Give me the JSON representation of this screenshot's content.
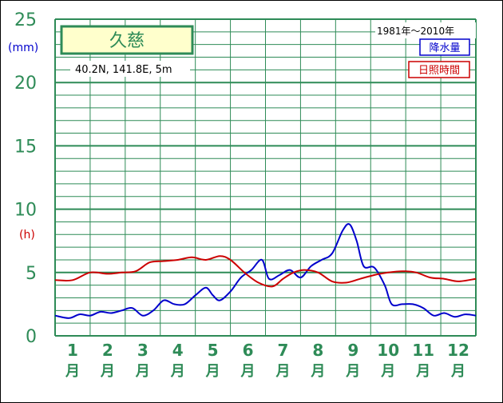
{
  "chart_data": {
    "type": "line",
    "period": "1981年〜2010年",
    "station": "久慈",
    "coords": "40.2N,  141.8E,  5m",
    "y_unit_precip": "(mm)",
    "y_unit_sun": "(h)",
    "yticks": [
      "0",
      "5",
      "10",
      "15",
      "20",
      "25"
    ],
    "ylim": [
      0,
      25
    ],
    "months": [
      "1",
      "2",
      "3",
      "4",
      "5",
      "6",
      "7",
      "8",
      "9",
      "10",
      "11",
      "12"
    ],
    "month_unit": "月",
    "x_range": [
      0.5,
      12.5
    ],
    "grid": true,
    "legend_position": "top-right",
    "series": [
      {
        "name": "降水量",
        "color": "#0000cc",
        "x": [
          0.5,
          0.9,
          1.2,
          1.5,
          1.8,
          2.1,
          2.4,
          2.7,
          3.0,
          3.3,
          3.6,
          3.9,
          4.2,
          4.5,
          4.8,
          5.0,
          5.2,
          5.5,
          5.8,
          6.1,
          6.4,
          6.6,
          6.9,
          7.2,
          7.5,
          7.8,
          8.1,
          8.4,
          8.7,
          8.9,
          9.1,
          9.3,
          9.6,
          9.9,
          10.1,
          10.4,
          10.7,
          11.0,
          11.3,
          11.6,
          11.9,
          12.2,
          12.5
        ],
        "y": [
          1.6,
          1.4,
          1.7,
          1.6,
          1.9,
          1.8,
          2.0,
          2.2,
          1.6,
          2.0,
          2.8,
          2.5,
          2.5,
          3.2,
          3.8,
          3.2,
          2.8,
          3.5,
          4.6,
          5.2,
          6.0,
          4.5,
          4.8,
          5.2,
          4.6,
          5.5,
          6.0,
          6.5,
          8.3,
          8.8,
          7.5,
          5.5,
          5.4,
          4.0,
          2.5,
          2.5,
          2.5,
          2.2,
          1.6,
          1.8,
          1.5,
          1.7,
          1.6
        ]
      },
      {
        "name": "日照時間",
        "color": "#cc0000",
        "x": [
          0.5,
          1.0,
          1.5,
          2.0,
          2.4,
          2.8,
          3.2,
          3.6,
          4.0,
          4.4,
          4.8,
          5.2,
          5.5,
          5.9,
          6.3,
          6.7,
          7.0,
          7.3,
          7.6,
          8.0,
          8.4,
          8.8,
          9.2,
          9.6,
          10.0,
          10.4,
          10.8,
          11.2,
          11.6,
          12.0,
          12.5
        ],
        "y": [
          4.4,
          4.4,
          5.0,
          4.9,
          5.0,
          5.1,
          5.8,
          5.9,
          6.0,
          6.2,
          6.0,
          6.3,
          6.0,
          5.0,
          4.2,
          3.9,
          4.5,
          5.0,
          5.2,
          5.0,
          4.3,
          4.2,
          4.5,
          4.8,
          5.0,
          5.1,
          5.0,
          4.6,
          4.5,
          4.3,
          4.5
        ]
      }
    ]
  },
  "colors": {
    "grid": "#2e8b57",
    "axis_text": "#2e8b57",
    "station_box_fill": "#ffffcc",
    "station_box_border": "#2e8b57"
  }
}
